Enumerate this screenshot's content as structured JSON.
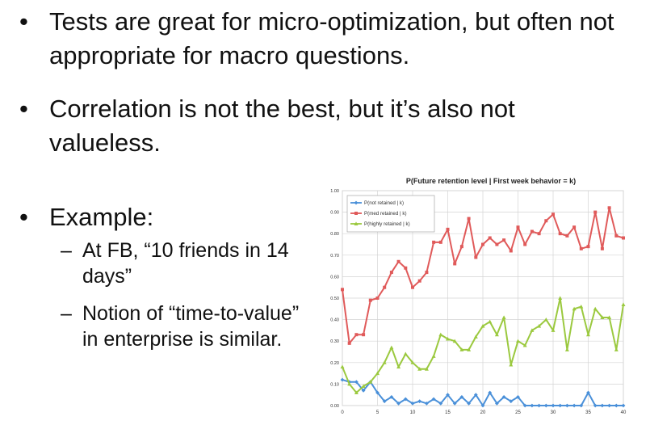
{
  "bullets": [
    {
      "symbol": "•",
      "text": "Tests are great for micro-optimization, but often not appropriate for macro questions."
    },
    {
      "symbol": "•",
      "text": "Correlation is not the best, but it’s also not valueless."
    },
    {
      "symbol": "•",
      "text": "Example:"
    }
  ],
  "sub_bullets": [
    {
      "symbol": "–",
      "text": "At FB, “10 friends in 14 days”"
    },
    {
      "symbol": "–",
      "text": "Notion of “time-to-value” in enterprise is similar."
    }
  ],
  "chart_data": {
    "type": "line",
    "title": "P(Future retention level | First week behavior = k)",
    "xlabel": "",
    "ylabel": "",
    "xlim": [
      0,
      40
    ],
    "ylim": [
      0,
      1
    ],
    "x_ticks": [
      "0",
      "5",
      "10",
      "15",
      "20",
      "25",
      "30",
      "35",
      "40"
    ],
    "y_ticks": [
      "0.00",
      "0.10",
      "0.20",
      "0.30",
      "0.40",
      "0.50",
      "0.60",
      "0.70",
      "0.80",
      "0.90",
      "1.00"
    ],
    "grid": true,
    "legend_position": "top-left",
    "x": [
      0,
      1,
      2,
      3,
      4,
      5,
      6,
      7,
      8,
      9,
      10,
      11,
      12,
      13,
      14,
      15,
      16,
      17,
      18,
      19,
      20,
      21,
      22,
      23,
      24,
      25,
      26,
      27,
      28,
      29,
      30,
      31,
      32,
      33,
      34,
      35,
      36,
      37,
      38,
      39,
      40
    ],
    "series": [
      {
        "name": "P(not retained | k)",
        "color": "#4a90d9",
        "marker": "diamond",
        "values": [
          0.12,
          0.11,
          0.11,
          0.07,
          0.11,
          0.06,
          0.02,
          0.04,
          0.01,
          0.03,
          0.01,
          0.02,
          0.01,
          0.03,
          0.01,
          0.05,
          0.01,
          0.04,
          0.01,
          0.05,
          0.0,
          0.06,
          0.01,
          0.04,
          0.02,
          0.04,
          0.0,
          0.0,
          0.0,
          0.0,
          0.0,
          0.0,
          0.0,
          0.0,
          0.0,
          0.06,
          0.0,
          0.0,
          0.0,
          0.0,
          0.0
        ]
      },
      {
        "name": "P(med retained | k)",
        "color": "#e05a5a",
        "marker": "square",
        "values": [
          0.54,
          0.29,
          0.33,
          0.33,
          0.49,
          0.5,
          0.55,
          0.62,
          0.67,
          0.64,
          0.55,
          0.58,
          0.62,
          0.76,
          0.76,
          0.82,
          0.66,
          0.74,
          0.87,
          0.69,
          0.75,
          0.78,
          0.75,
          0.77,
          0.72,
          0.83,
          0.75,
          0.81,
          0.8,
          0.86,
          0.89,
          0.8,
          0.79,
          0.83,
          0.73,
          0.74,
          0.9,
          0.73,
          0.92,
          0.79,
          0.78
        ]
      },
      {
        "name": "P(highly retained | k)",
        "color": "#9bc93f",
        "marker": "triangle",
        "values": [
          0.18,
          0.1,
          0.06,
          0.09,
          0.11,
          0.15,
          0.2,
          0.27,
          0.18,
          0.24,
          0.2,
          0.17,
          0.17,
          0.23,
          0.33,
          0.31,
          0.3,
          0.26,
          0.26,
          0.32,
          0.37,
          0.39,
          0.33,
          0.41,
          0.19,
          0.3,
          0.28,
          0.35,
          0.37,
          0.4,
          0.35,
          0.5,
          0.26,
          0.45,
          0.46,
          0.33,
          0.45,
          0.41,
          0.41,
          0.26,
          0.47
        ]
      }
    ]
  }
}
